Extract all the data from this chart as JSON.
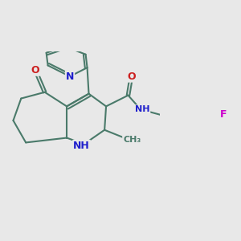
{
  "background_color": "#e8e8e8",
  "bond_color": "#4a7a6a",
  "bond_width": 1.5,
  "atom_colors": {
    "N": "#2020cc",
    "O": "#cc2020",
    "F": "#cc00cc",
    "C": "#4a7a6a",
    "H": "#2020cc"
  },
  "font_size_atom": 9,
  "fig_width": 3.0,
  "fig_height": 3.0,
  "xlim": [
    -2.2,
    2.8
  ],
  "ylim": [
    -2.2,
    2.2
  ]
}
